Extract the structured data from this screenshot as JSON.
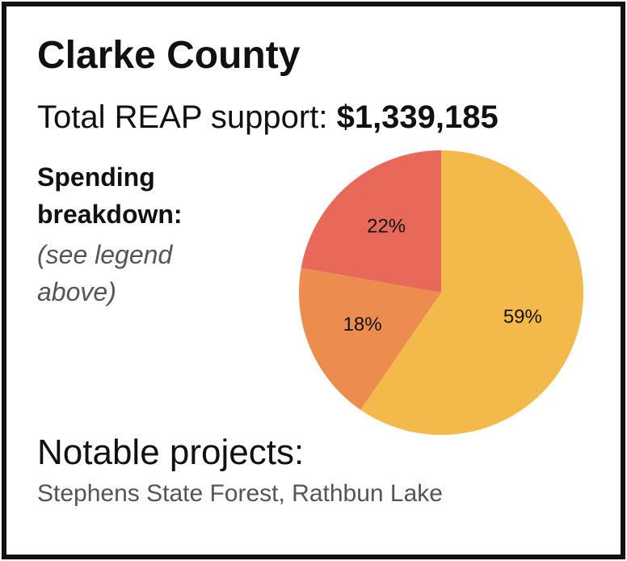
{
  "chart_data": {
    "type": "pie",
    "title": "Clarke County",
    "support_label": "Total REAP support:",
    "support_value": "$1,339,185",
    "breakdown_label": [
      "Spending",
      "breakdown:"
    ],
    "breakdown_note": [
      "(see legend",
      "above)"
    ],
    "values": [
      59,
      18,
      22
    ],
    "value_labels": [
      "59%",
      "18%",
      "22%"
    ],
    "colors": [
      "#f3b94a",
      "#ec8c4e",
      "#e8695a"
    ],
    "projects_label": "Notable projects:",
    "projects": "Stephens State Forest, Rathbun Lake"
  }
}
